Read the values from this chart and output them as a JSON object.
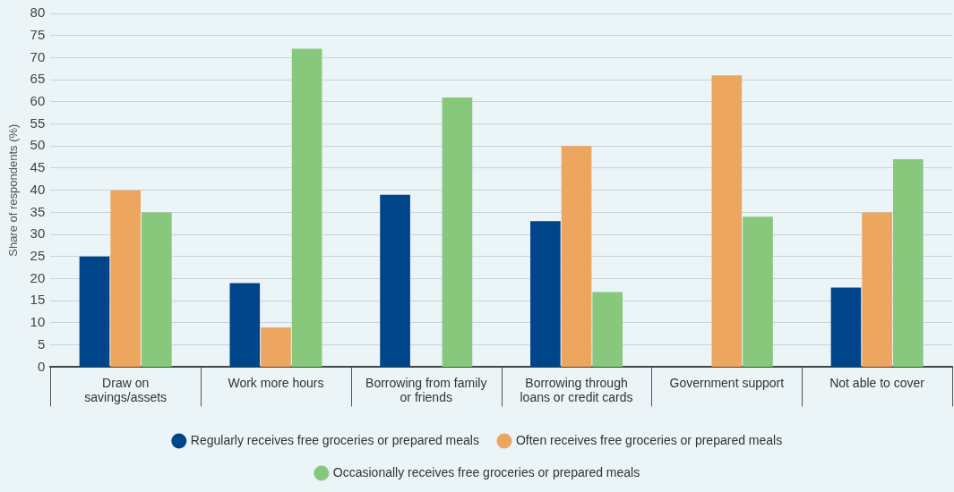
{
  "chart_data": {
    "type": "bar",
    "categories": [
      "Draw on\nsavings/assets",
      "Work more hours",
      "Borrowing from family\nor friends",
      "Borrowing through\nloans or credit cards",
      "Government support",
      "Not able to cover"
    ],
    "ylabel": "Share of respondents (%)",
    "ylim": [
      0,
      80
    ],
    "yticks": [
      0,
      5,
      10,
      15,
      20,
      25,
      30,
      35,
      40,
      45,
      50,
      55,
      60,
      65,
      70,
      75,
      80
    ],
    "grid": "y",
    "legend": "bottom",
    "series": [
      {
        "name": "Regularly receives free groceries or prepared meals",
        "color": "#00448a",
        "values": [
          25,
          19,
          39,
          33,
          null,
          18
        ]
      },
      {
        "name": "Often receives free groceries or prepared meals",
        "color": "#eca65f",
        "values": [
          40,
          9,
          null,
          50,
          66,
          35
        ]
      },
      {
        "name": "Occasionally receives free groceries or prepared meals",
        "color": "#87c87d",
        "values": [
          35,
          72,
          61,
          17,
          34,
          47
        ]
      }
    ]
  }
}
